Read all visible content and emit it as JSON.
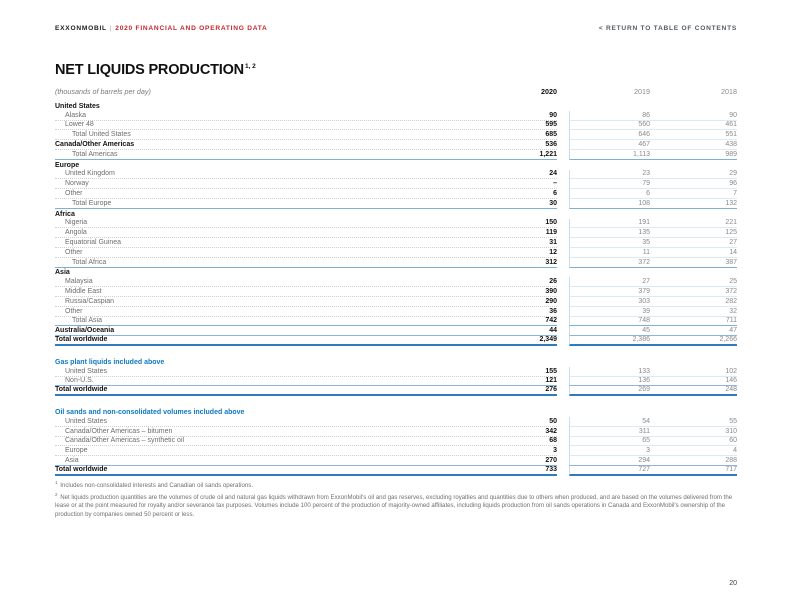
{
  "header": {
    "brand": "EXXONMOBIL",
    "separator": "|",
    "doc_title": "2020 FINANCIAL AND OPERATING DATA",
    "return_link": "< RETURN TO TABLE OF CONTENTS"
  },
  "page": {
    "title": "NET LIQUIDS PRODUCTION",
    "title_superscript": "1, 2",
    "subtitle": "(thousands of barrels per day)",
    "page_number": "20"
  },
  "colors": {
    "brand_red": "#c5262c",
    "section_blue": "#0e79c0",
    "total_rule_blue": "#7fb0d8",
    "grand_rule_blue": "#2f7cbd",
    "column_divider_blue": "#c8ddef"
  },
  "table": {
    "columns": [
      "2020",
      "2019",
      "2018"
    ],
    "groups": [
      {
        "title": null,
        "rows": [
          {
            "label": "United States",
            "style": "section"
          },
          {
            "label": "Alaska",
            "style": "item",
            "indent": 1,
            "values": [
              "90",
              "86",
              "90"
            ]
          },
          {
            "label": "Lower 48",
            "style": "item",
            "indent": 1,
            "values": [
              "595",
              "560",
              "461"
            ]
          },
          {
            "label": "Total United States",
            "style": "subtotal",
            "indent": 2,
            "values": [
              "685",
              "646",
              "551"
            ]
          },
          {
            "label": "Canada/Other Americas",
            "style": "bold",
            "values": [
              "536",
              "467",
              "438"
            ]
          },
          {
            "label": "Total Americas",
            "style": "total",
            "indent": 2,
            "values": [
              "1,221",
              "1,113",
              "989"
            ]
          },
          {
            "label": "Europe",
            "style": "section"
          },
          {
            "label": "United Kingdom",
            "style": "item",
            "indent": 1,
            "values": [
              "24",
              "23",
              "29"
            ]
          },
          {
            "label": "Norway",
            "style": "item",
            "indent": 1,
            "values": [
              "–",
              "79",
              "96"
            ]
          },
          {
            "label": "Other",
            "style": "item",
            "indent": 1,
            "values": [
              "6",
              "6",
              "7"
            ]
          },
          {
            "label": "Total Europe",
            "style": "total",
            "indent": 2,
            "values": [
              "30",
              "108",
              "132"
            ]
          },
          {
            "label": "Africa",
            "style": "section"
          },
          {
            "label": "Nigeria",
            "style": "item",
            "indent": 1,
            "values": [
              "150",
              "191",
              "221"
            ]
          },
          {
            "label": "Angola",
            "style": "item",
            "indent": 1,
            "values": [
              "119",
              "135",
              "125"
            ]
          },
          {
            "label": "Equatorial Guinea",
            "style": "item",
            "indent": 1,
            "values": [
              "31",
              "35",
              "27"
            ]
          },
          {
            "label": "Other",
            "style": "item",
            "indent": 1,
            "values": [
              "12",
              "11",
              "14"
            ]
          },
          {
            "label": "Total Africa",
            "style": "total",
            "indent": 2,
            "values": [
              "312",
              "372",
              "387"
            ]
          },
          {
            "label": "Asia",
            "style": "section"
          },
          {
            "label": "Malaysia",
            "style": "item",
            "indent": 1,
            "values": [
              "26",
              "27",
              "25"
            ]
          },
          {
            "label": "Middle East",
            "style": "item",
            "indent": 1,
            "values": [
              "390",
              "379",
              "372"
            ]
          },
          {
            "label": "Russia/Caspian",
            "style": "item",
            "indent": 1,
            "values": [
              "290",
              "303",
              "282"
            ]
          },
          {
            "label": "Other",
            "style": "item",
            "indent": 1,
            "values": [
              "36",
              "39",
              "32"
            ]
          },
          {
            "label": "Total Asia",
            "style": "total",
            "indent": 2,
            "values": [
              "742",
              "748",
              "711"
            ]
          },
          {
            "label": "Australia/Oceania",
            "style": "bold",
            "values": [
              "44",
              "45",
              "47"
            ]
          },
          {
            "label": "Total worldwide",
            "style": "grand",
            "values": [
              "2,349",
              "2,386",
              "2,266"
            ]
          }
        ]
      },
      {
        "title": "Gas plant liquids included above",
        "rows": [
          {
            "label": "United States",
            "style": "item",
            "indent": 1,
            "values": [
              "155",
              "133",
              "102"
            ]
          },
          {
            "label": "Non-U.S.",
            "style": "item",
            "indent": 1,
            "values": [
              "121",
              "136",
              "146"
            ]
          },
          {
            "label": "Total worldwide",
            "style": "grand",
            "values": [
              "276",
              "269",
              "248"
            ]
          }
        ]
      },
      {
        "title": "Oil sands and non-consolidated volumes included above",
        "rows": [
          {
            "label": "United States",
            "style": "item",
            "indent": 1,
            "values": [
              "50",
              "54",
              "55"
            ]
          },
          {
            "label": "Canada/Other Americas – bitumen",
            "style": "item",
            "indent": 1,
            "values": [
              "342",
              "311",
              "310"
            ]
          },
          {
            "label": "Canada/Other Americas – synthetic oil",
            "style": "item",
            "indent": 1,
            "values": [
              "68",
              "65",
              "60"
            ]
          },
          {
            "label": "Europe",
            "style": "item",
            "indent": 1,
            "values": [
              "3",
              "3",
              "4"
            ]
          },
          {
            "label": "Asia",
            "style": "item",
            "indent": 1,
            "values": [
              "270",
              "294",
              "288"
            ]
          },
          {
            "label": "Total worldwide",
            "style": "grand",
            "values": [
              "733",
              "727",
              "717"
            ]
          }
        ]
      }
    ]
  },
  "footnotes": [
    {
      "marker": "1",
      "text": "Includes non-consolidated interests and Canadian oil sands operations."
    },
    {
      "marker": "2",
      "text": "Net liquids production quantities are the volumes of crude oil and natural gas liquids withdrawn from ExxonMobil's oil and gas reserves, excluding royalties and quantities due to others when produced, and are based on the volumes delivered from the lease or at the point measured for royalty and/or severance tax purposes. Volumes include 100 percent of the production of majority-owned affiliates, including liquids production from oil sands operations in Canada and ExxonMobil's ownership of the production by companies owned 50 percent or less."
    }
  ]
}
